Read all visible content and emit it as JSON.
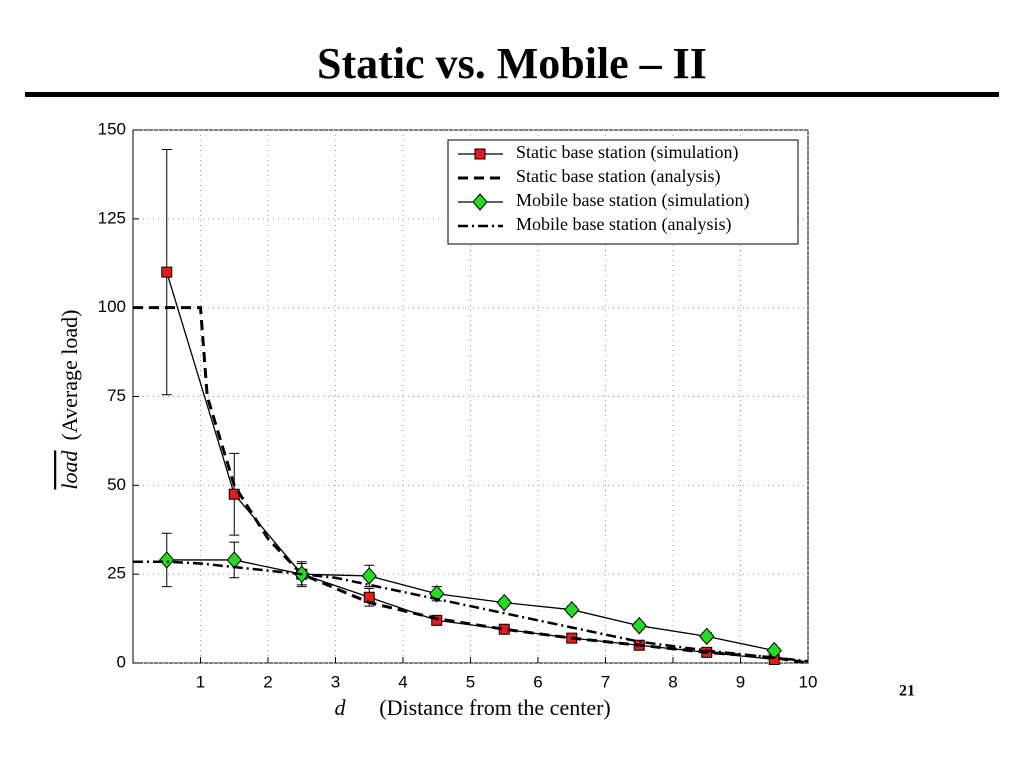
{
  "slide": {
    "title": "Static vs. Mobile – II",
    "page_number": "21"
  },
  "chart_data": {
    "type": "line",
    "x_label_symbol": "d",
    "x_label": "(Distance from the center)",
    "y_label_symbol": "load",
    "y_label": "(Average load)",
    "xlim": [
      0,
      10
    ],
    "ylim": [
      0,
      150
    ],
    "xticks": [
      1,
      2,
      3,
      4,
      5,
      6,
      7,
      8,
      9,
      10
    ],
    "yticks": [
      0,
      25,
      50,
      75,
      100,
      125,
      150
    ],
    "grid": true,
    "legend": "upper right",
    "series": [
      {
        "name": "Static base station (simulation)",
        "color": "#e41a1c",
        "linestyle": "solid",
        "marker": "square",
        "x": [
          0.5,
          1.5,
          2.5,
          3.5,
          4.5,
          5.5,
          6.5,
          7.5,
          8.5,
          9.5
        ],
        "values": [
          110,
          47.5,
          25,
          18.5,
          12,
          9.5,
          7,
          5,
          3,
          1
        ],
        "errors": [
          34.5,
          11.5,
          3,
          2.5,
          1,
          1,
          1,
          1,
          1,
          0.5
        ]
      },
      {
        "name": "Static base station (analysis)",
        "color": "#000000",
        "linestyle": "dashed",
        "marker": "none",
        "x": [
          0,
          1,
          1.1,
          1.5,
          2,
          2.5,
          3,
          3.5,
          4.5,
          5.5,
          6.5,
          7.5,
          8.5,
          9.5,
          10
        ],
        "values": [
          100,
          100,
          75,
          50,
          35,
          25,
          21,
          17,
          12.5,
          9.5,
          7,
          5,
          3,
          1.5,
          0
        ]
      },
      {
        "name": "Mobile base station (simulation)",
        "color": "#22dd22",
        "linestyle": "solid",
        "marker": "diamond",
        "x": [
          0.5,
          1.5,
          2.5,
          3.5,
          4.5,
          5.5,
          6.5,
          7.5,
          8.5,
          9.5
        ],
        "values": [
          29,
          29,
          25,
          24.5,
          19.5,
          17,
          15,
          10.5,
          7.5,
          3.5
        ],
        "errors": [
          7.5,
          5,
          3.5,
          3,
          2,
          1,
          1,
          1,
          1,
          0.5
        ]
      },
      {
        "name": "Mobile base station (analysis)",
        "color": "#000000",
        "linestyle": "dashdot",
        "marker": "none",
        "x": [
          0,
          0.5,
          1,
          2,
          3,
          3.5,
          4.5,
          5.5,
          6.5,
          7.5,
          8.5,
          9.5,
          10
        ],
        "values": [
          28.5,
          28.5,
          28,
          26,
          24,
          22,
          18,
          14,
          10,
          6,
          3.5,
          1.5,
          0.5
        ]
      }
    ]
  }
}
